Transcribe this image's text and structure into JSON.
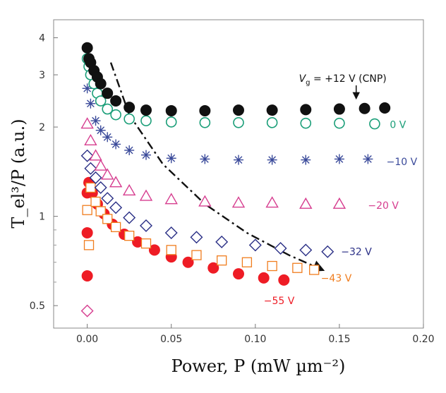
{
  "chart_data": {
    "type": "scatter",
    "title": "",
    "xlabel": "Power, P (mW µm⁻²)",
    "ylabel": "T_el³/P (a.u.)",
    "xlim": [
      -0.02,
      0.2
    ],
    "ylim": [
      0.42,
      4.6
    ],
    "y_scale": "log",
    "grid": false,
    "x_ticks": [
      "0.00",
      "0.05",
      "0.10",
      "0.15",
      "0.20"
    ],
    "y_ticks": [
      "0.5",
      "1",
      "2",
      "3",
      "4"
    ],
    "series": [
      {
        "name": "V_g = +12 V (CNP)",
        "label": "= +12 V (CNP)",
        "marker": "filled-circle",
        "color": "#111111",
        "x": [
          0.0,
          0.001,
          0.002,
          0.004,
          0.006,
          0.008,
          0.012,
          0.017,
          0.025,
          0.035,
          0.05,
          0.07,
          0.09,
          0.11,
          0.13,
          0.15,
          0.165,
          0.177
        ],
        "y": [
          3.7,
          3.4,
          3.3,
          3.1,
          2.95,
          2.8,
          2.6,
          2.45,
          2.33,
          2.28,
          2.27,
          2.27,
          2.28,
          2.28,
          2.29,
          2.3,
          2.31,
          2.32
        ]
      },
      {
        "name": "0 V",
        "label": "0 V",
        "marker": "open-circle",
        "color": "#1a9e78",
        "x": [
          0.0,
          0.001,
          0.002,
          0.004,
          0.006,
          0.008,
          0.012,
          0.017,
          0.025,
          0.035,
          0.05,
          0.07,
          0.09,
          0.11,
          0.13,
          0.15,
          0.171
        ],
        "y": [
          3.4,
          3.2,
          3.0,
          2.8,
          2.6,
          2.45,
          2.3,
          2.2,
          2.13,
          2.1,
          2.08,
          2.07,
          2.07,
          2.07,
          2.06,
          2.06,
          2.05
        ]
      },
      {
        "name": "−10 V",
        "label": "−10 V",
        "marker": "asterisk",
        "color": "#3a4a9a",
        "x": [
          0.0,
          0.002,
          0.005,
          0.008,
          0.012,
          0.017,
          0.025,
          0.035,
          0.05,
          0.07,
          0.09,
          0.11,
          0.13,
          0.15,
          0.167
        ],
        "y": [
          2.7,
          2.4,
          2.1,
          1.95,
          1.85,
          1.75,
          1.67,
          1.61,
          1.57,
          1.56,
          1.55,
          1.55,
          1.55,
          1.56,
          1.56
        ]
      },
      {
        "name": "−20 V",
        "label": "−20 V",
        "marker": "open-triangle",
        "color": "#d63d8f",
        "x": [
          0.0,
          0.002,
          0.005,
          0.008,
          0.012,
          0.017,
          0.025,
          0.035,
          0.05,
          0.07,
          0.09,
          0.11,
          0.13,
          0.15
        ],
        "y": [
          2.05,
          1.8,
          1.6,
          1.48,
          1.38,
          1.3,
          1.22,
          1.17,
          1.14,
          1.12,
          1.11,
          1.11,
          1.1,
          1.1
        ]
      },
      {
        "name": "−32 V",
        "label": "−32 V",
        "marker": "open-diamond",
        "color": "#2a2f86",
        "x": [
          0.0,
          0.002,
          0.005,
          0.008,
          0.012,
          0.017,
          0.025,
          0.035,
          0.05,
          0.065,
          0.08,
          0.1,
          0.115,
          0.13,
          0.143
        ],
        "y": [
          1.6,
          1.45,
          1.35,
          1.25,
          1.15,
          1.07,
          0.99,
          0.93,
          0.88,
          0.85,
          0.82,
          0.8,
          0.78,
          0.77,
          0.76
        ]
      },
      {
        "name": "−43 V",
        "label": "−43 V",
        "marker": "open-square",
        "color": "#f07d1e",
        "x": [
          0.0,
          0.001,
          0.002,
          0.005,
          0.008,
          0.012,
          0.017,
          0.025,
          0.035,
          0.05,
          0.065,
          0.08,
          0.095,
          0.11,
          0.125,
          0.135
        ],
        "y": [
          1.05,
          0.8,
          1.25,
          1.12,
          1.04,
          0.98,
          0.92,
          0.86,
          0.81,
          0.77,
          0.74,
          0.71,
          0.7,
          0.68,
          0.67,
          0.66
        ]
      },
      {
        "name": "−55 V",
        "label": "−55 V",
        "marker": "filled-circle",
        "color": "#ee1c25",
        "x": [
          0.0,
          0.0,
          0.0,
          0.001,
          0.003,
          0.006,
          0.01,
          0.015,
          0.022,
          0.03,
          0.04,
          0.05,
          0.06,
          0.075,
          0.09,
          0.105,
          0.117
        ],
        "y": [
          0.63,
          0.88,
          1.2,
          1.3,
          1.2,
          1.1,
          1.02,
          0.94,
          0.87,
          0.82,
          0.77,
          0.73,
          0.7,
          0.67,
          0.64,
          0.62,
          0.61
        ]
      }
    ],
    "extra_points": {
      "x": [
        0.0
      ],
      "y": [
        0.48
      ],
      "color": "#d63d8f",
      "marker": "open-diamond"
    },
    "annotations": [
      {
        "type": "dash-dot-arrow",
        "x": [
          0.014,
          0.025,
          0.045,
          0.07,
          0.095,
          0.12,
          0.14
        ],
        "y": [
          3.3,
          2.2,
          1.5,
          1.1,
          0.88,
          0.74,
          0.66
        ]
      },
      {
        "type": "arrow-down",
        "text": "V_g = +12 V (CNP)",
        "x": 0.16,
        "y": 2.45
      }
    ]
  }
}
